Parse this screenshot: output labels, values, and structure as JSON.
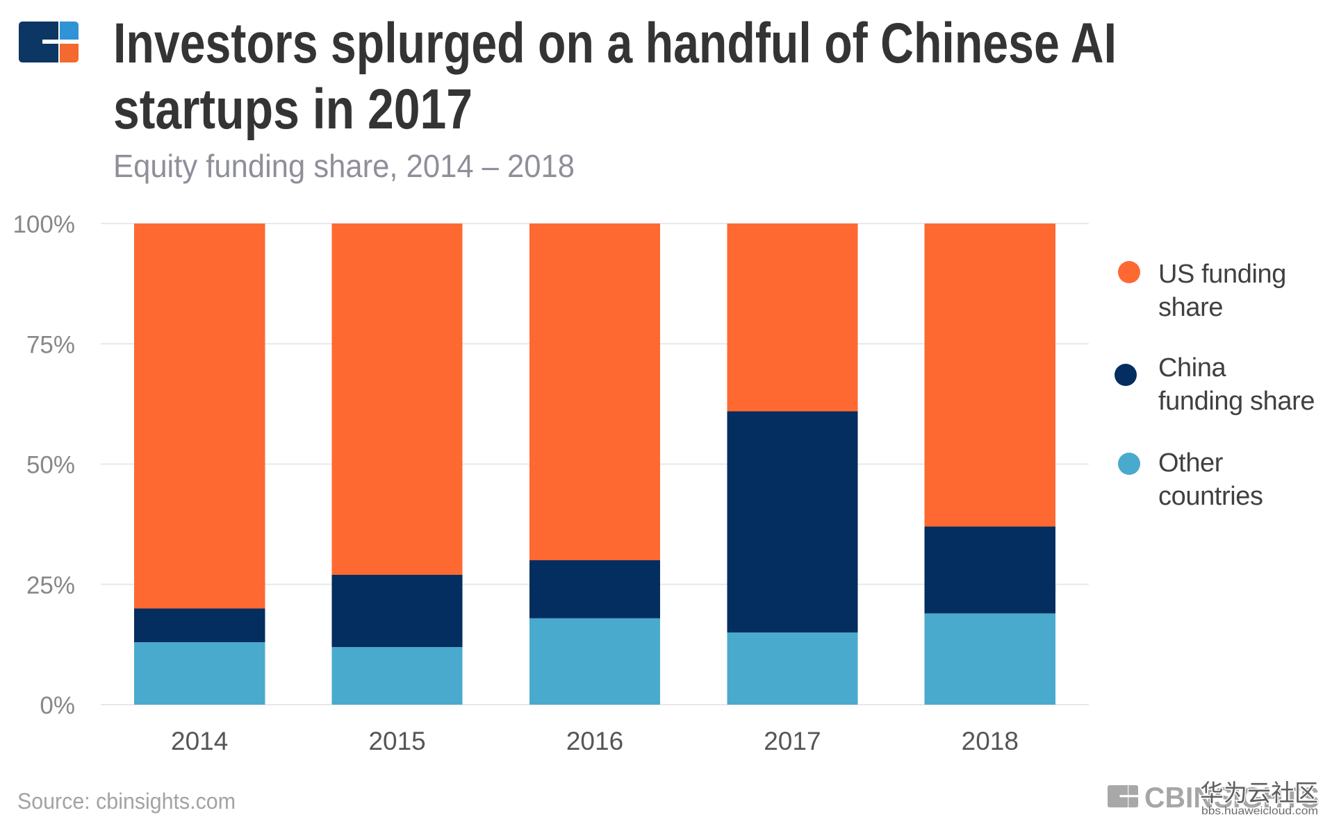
{
  "brand": {
    "logo_icon": "cb-insights-logo-icon",
    "navy": "#0c3663",
    "blue": "#2f93d5",
    "orange": "#f4692d",
    "footer_gray": "#a8a8a8"
  },
  "chart_data": {
    "type": "bar",
    "stacked": true,
    "title_lines": [
      "Investors splurged on a handful of Chinese AI",
      "startups in 2017"
    ],
    "subtitle": "Equity funding share, 2014 – 2018",
    "categories": [
      "2014",
      "2015",
      "2016",
      "2017",
      "2018"
    ],
    "series": [
      {
        "name": "US funding share",
        "color": "#fe6932",
        "values": [
          80,
          73,
          70,
          39,
          63
        ]
      },
      {
        "name": "China funding share",
        "color": "#032e5f",
        "values": [
          7,
          15,
          12,
          46,
          18
        ]
      },
      {
        "name": "Other countries",
        "color": "#4aaacd",
        "values": [
          13,
          12,
          18,
          15,
          19
        ]
      }
    ],
    "xlabel": "",
    "ylabel": "",
    "ylim": [
      0,
      100
    ],
    "yticks": [
      0,
      25,
      50,
      75,
      100
    ],
    "ytick_labels": [
      "0%",
      "25%",
      "50%",
      "75%",
      "100%"
    ],
    "grid": true,
    "legend_position": "right"
  },
  "footer": {
    "source": "Source: cbinsights.com"
  },
  "watermark": {
    "logo_text": "CBINSIGHTS",
    "site_name": "华为云社区",
    "site_url": "bbs.huaweicloud.com"
  }
}
